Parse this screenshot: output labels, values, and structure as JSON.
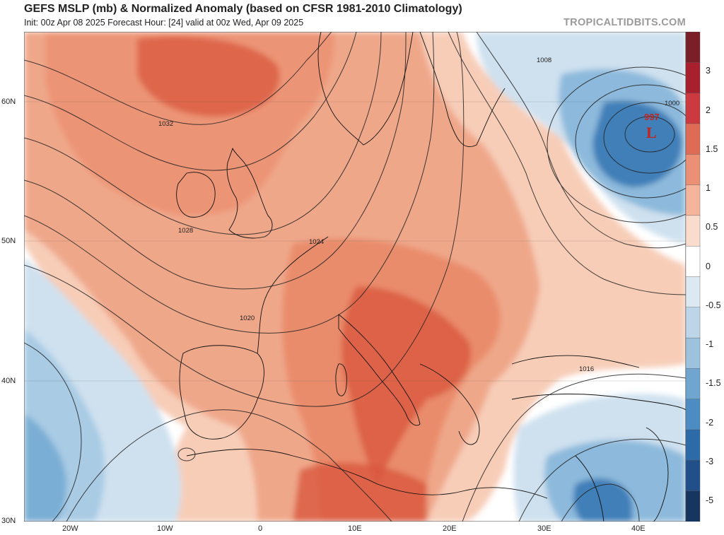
{
  "header": {
    "title": "GEFS MSLP (mb) & Normalized Anomaly (based on CFSR 1981-2010 Climatology)",
    "subtitle": "Init: 00z Apr 08 2025   Forecast Hour: [24]   valid at 00z Wed, Apr 09 2025",
    "brand": "TROPICALTIDBITS.COM"
  },
  "map": {
    "lat_labels": [
      "60N",
      "50N",
      "40N",
      "30N"
    ],
    "lon_labels": [
      "20W",
      "10W",
      "0",
      "10E",
      "20E",
      "30E",
      "40E"
    ],
    "low_center": {
      "pressure": "997",
      "symbol": "L"
    },
    "isobar_labels": [
      "1032",
      "1028",
      "1024",
      "1020",
      "1016",
      "1008",
      "1000"
    ]
  },
  "colorbar": {
    "labels": [
      "3",
      "2",
      "1.5",
      "1",
      "0.5",
      "0",
      "-0.5",
      "-1",
      "-1.5",
      "-2",
      "-3",
      "-5"
    ],
    "colors": [
      "#7a1f28",
      "#a81f2e",
      "#cc3a3f",
      "#dd6b55",
      "#eb9075",
      "#f4b59c",
      "#fadccd",
      "#ffffff",
      "#dde9f2",
      "#bcd5e8",
      "#9cc2de",
      "#6fa5cf",
      "#4c8cc2",
      "#2d6ba8",
      "#204f89",
      "#16355f"
    ]
  },
  "colors": {
    "strong_positive": "#d9573f",
    "positive": "#ec9476",
    "weak_positive": "#f7cdb8",
    "neutral": "#ffffff",
    "weak_negative": "#cfe1ef",
    "negative": "#8dbadc",
    "strong_negative": "#3f7fb8"
  }
}
